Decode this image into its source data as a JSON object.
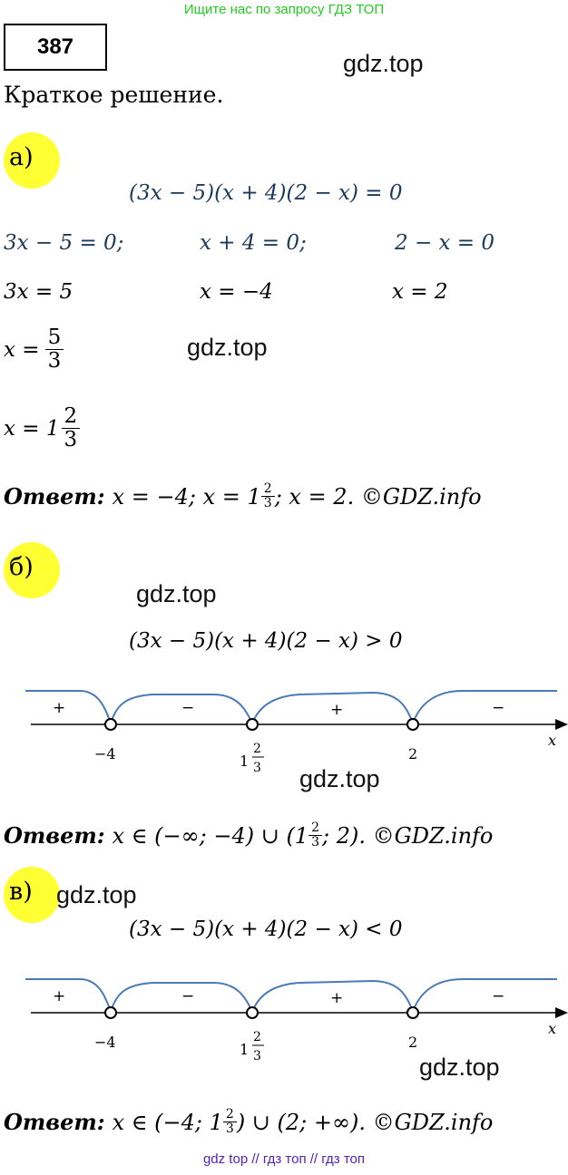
{
  "banner": "Ищите нас по запросу ГДЗ ТОП",
  "problem_number": "387",
  "watermark": "gdz.top",
  "title": "Краткое решение.",
  "parts": {
    "a": {
      "label": "а)",
      "equation": "(3x − 5)(x + 4)(2 − x) = 0",
      "eq1": "3x − 5 = 0;",
      "eq2": "x + 4 = 0;",
      "eq3": "2 − x = 0",
      "s1": "3x = 5",
      "s2": "x = −4",
      "s3": "x = 2",
      "x_eq": "x =",
      "frac_num": "5",
      "frac_den": "3",
      "mixed_prefix": "x = 1",
      "mixed_num": "2",
      "mixed_den": "3",
      "answer_label": "Ответ:",
      "answer_text1": "x = −4; x = 1",
      "answer_text2": "; x = 2. ©GDZ.info"
    },
    "b": {
      "label": "б)",
      "inequality": "(3x − 5)(x + 4)(2 − x) > 0",
      "signs": [
        "+",
        "−",
        "+",
        "−"
      ],
      "ticks": [
        "−4",
        "1",
        "2"
      ],
      "tick_frac_num": "2",
      "tick_frac_den": "3",
      "axis_label": "x",
      "answer_label": "Ответ:",
      "answer_text1": "x ∈ (−∞; −4) ∪ (1",
      "answer_text2": "; 2). ©GDZ.info"
    },
    "c": {
      "label": "в)",
      "inequality": "(3x − 5)(x + 4)(2 − x) < 0",
      "signs": [
        "+",
        "−",
        "+",
        "−"
      ],
      "ticks": [
        "−4",
        "1",
        "2"
      ],
      "tick_frac_num": "2",
      "tick_frac_den": "3",
      "axis_label": "x",
      "answer_label": "Ответ:",
      "answer_text1": "x ∈ (−4; 1",
      "answer_text2": ") ∪ (2; +∞). ©GDZ.info"
    }
  },
  "footer": "gdz top  //  гдз топ  //  гдз топ",
  "colors": {
    "highlight": "#ffff33",
    "curve": "#4a7ab8",
    "banner": "#22cc22",
    "footer": "#5522bb"
  }
}
